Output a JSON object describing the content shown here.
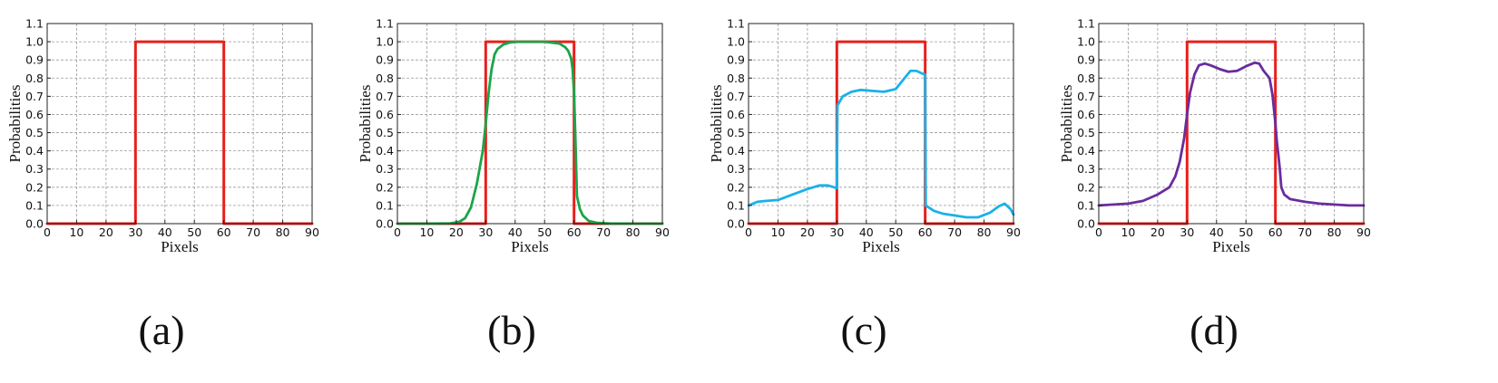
{
  "chart_data": [
    {
      "type": "line",
      "caption": "(a)",
      "xlabel": "Pixels",
      "ylabel": "Probabilities",
      "xlim": [
        0,
        90
      ],
      "ylim": [
        0,
        1.1
      ],
      "xticks": [
        0,
        10,
        20,
        30,
        40,
        50,
        60,
        70,
        80,
        90
      ],
      "yticks": [
        "0.0",
        "0.1",
        "0.2",
        "0.3",
        "0.4",
        "0.5",
        "0.6",
        "0.7",
        "0.8",
        "0.9",
        "1.0",
        "1.1"
      ],
      "grid": true,
      "legend": "none",
      "series": [
        {
          "color": "#e8201c",
          "x": [
            0,
            30,
            30,
            60,
            60,
            90
          ],
          "y": [
            0,
            0,
            1,
            1,
            0,
            0
          ]
        }
      ]
    },
    {
      "type": "line",
      "caption": "(b)",
      "xlabel": "Pixels",
      "ylabel": "Probabilities",
      "xlim": [
        0,
        90
      ],
      "ylim": [
        0,
        1.1
      ],
      "xticks": [
        0,
        10,
        20,
        30,
        40,
        50,
        60,
        70,
        80,
        90
      ],
      "yticks": [
        "0.0",
        "0.1",
        "0.2",
        "0.3",
        "0.4",
        "0.5",
        "0.6",
        "0.7",
        "0.8",
        "0.9",
        "1.0",
        "1.1"
      ],
      "grid": true,
      "legend": "none",
      "series": [
        {
          "color": "#e8201c",
          "x": [
            0,
            30,
            30,
            60,
            60,
            90
          ],
          "y": [
            0,
            0,
            1,
            1,
            0,
            0
          ]
        },
        {
          "color": "#1aa548",
          "x": [
            0,
            10,
            18,
            21,
            23,
            25,
            27,
            29,
            30,
            31,
            32,
            33,
            34,
            36,
            38,
            40,
            45,
            50,
            55,
            57,
            58,
            59,
            59.5,
            60,
            60.5,
            61,
            62,
            63,
            65,
            68,
            72,
            80,
            90
          ],
          "y": [
            0,
            0,
            0.002,
            0.01,
            0.03,
            0.09,
            0.22,
            0.4,
            0.55,
            0.72,
            0.85,
            0.93,
            0.96,
            0.985,
            0.995,
            1.0,
            1.0,
            1.0,
            0.99,
            0.97,
            0.95,
            0.91,
            0.85,
            0.72,
            0.45,
            0.15,
            0.08,
            0.045,
            0.015,
            0.004,
            0.001,
            0,
            0
          ]
        }
      ]
    },
    {
      "type": "line",
      "caption": "(c)",
      "xlabel": "Pixels",
      "ylabel": "Probabilities",
      "xlim": [
        0,
        90
      ],
      "ylim": [
        0,
        1.1
      ],
      "xticks": [
        0,
        10,
        20,
        30,
        40,
        50,
        60,
        70,
        80,
        90
      ],
      "yticks": [
        "0.0",
        "0.1",
        "0.2",
        "0.3",
        "0.4",
        "0.5",
        "0.6",
        "0.7",
        "0.8",
        "0.9",
        "1.0",
        "1.1"
      ],
      "grid": true,
      "legend": "none",
      "series": [
        {
          "color": "#e8201c",
          "x": [
            0,
            30,
            30,
            60,
            60,
            90
          ],
          "y": [
            0,
            0,
            1,
            1,
            0,
            0
          ]
        },
        {
          "color": "#1ab1e8",
          "x": [
            0,
            3,
            6,
            10,
            15,
            20,
            24,
            27,
            29,
            30,
            30.2,
            32,
            35,
            38,
            42,
            46,
            50,
            53,
            55,
            57,
            59,
            60,
            60.2,
            63,
            66,
            70,
            74,
            78,
            82,
            85,
            87,
            89,
            90
          ],
          "y": [
            0.1,
            0.12,
            0.125,
            0.13,
            0.16,
            0.19,
            0.21,
            0.21,
            0.2,
            0.195,
            0.65,
            0.7,
            0.725,
            0.735,
            0.73,
            0.725,
            0.74,
            0.8,
            0.84,
            0.84,
            0.825,
            0.82,
            0.1,
            0.07,
            0.055,
            0.045,
            0.035,
            0.035,
            0.06,
            0.095,
            0.11,
            0.08,
            0.05
          ]
        }
      ]
    },
    {
      "type": "line",
      "caption": "(d)",
      "xlabel": "Pixels",
      "ylabel": "Probabilities",
      "xlim": [
        0,
        90
      ],
      "ylim": [
        0,
        1.1
      ],
      "xticks": [
        0,
        10,
        20,
        30,
        40,
        50,
        60,
        70,
        80,
        90
      ],
      "yticks": [
        "0.0",
        "0.1",
        "0.2",
        "0.3",
        "0.4",
        "0.5",
        "0.6",
        "0.7",
        "0.8",
        "0.9",
        "1.0",
        "1.1"
      ],
      "grid": true,
      "legend": "none",
      "series": [
        {
          "color": "#e8201c",
          "x": [
            0,
            30,
            30,
            60,
            60,
            90
          ],
          "y": [
            0,
            0,
            1,
            1,
            0,
            0
          ]
        },
        {
          "color": "#6a2c9e",
          "x": [
            0,
            5,
            10,
            15,
            20,
            24,
            26,
            27.5,
            29,
            30,
            31,
            32.5,
            34,
            36,
            38,
            41,
            44,
            47,
            50,
            53,
            54.5,
            56,
            58,
            59,
            60,
            60.5,
            61,
            61.5,
            62,
            63,
            65,
            70,
            75,
            80,
            85,
            90
          ],
          "y": [
            0.1,
            0.105,
            0.11,
            0.125,
            0.16,
            0.2,
            0.26,
            0.34,
            0.47,
            0.6,
            0.72,
            0.82,
            0.87,
            0.88,
            0.87,
            0.85,
            0.835,
            0.84,
            0.865,
            0.885,
            0.88,
            0.84,
            0.8,
            0.71,
            0.55,
            0.45,
            0.38,
            0.3,
            0.2,
            0.16,
            0.135,
            0.12,
            0.11,
            0.105,
            0.1,
            0.1
          ]
        }
      ]
    }
  ]
}
